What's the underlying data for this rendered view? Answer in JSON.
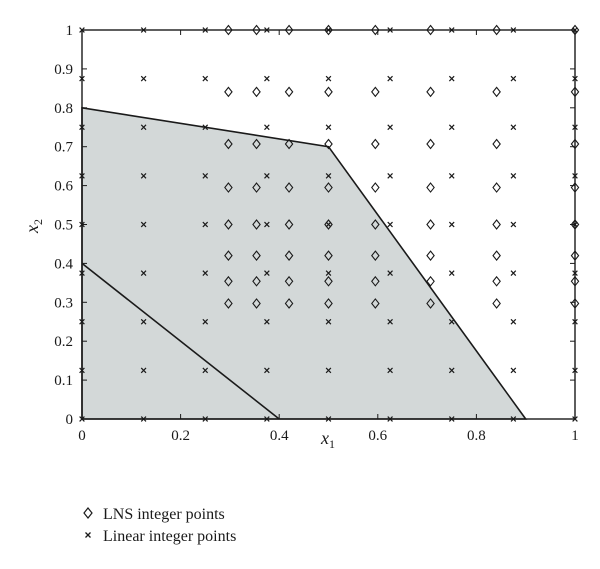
{
  "chart_data": {
    "type": "scatter",
    "title": "",
    "xlabel": "x",
    "xlabel_sub": "1",
    "ylabel": "x",
    "ylabel_sub": "2",
    "xlim": [
      0,
      1
    ],
    "ylim": [
      0,
      1
    ],
    "x_ticks": [
      0,
      0.2,
      0.4,
      0.6,
      0.8,
      1
    ],
    "x_tick_labels": [
      "0",
      "0.2",
      "0.4",
      "0.6",
      "0.8",
      "1"
    ],
    "y_ticks": [
      0,
      0.1,
      0.2,
      0.3,
      0.4,
      0.5,
      0.6,
      0.7,
      0.8,
      0.9,
      1
    ],
    "y_tick_labels": [
      "0",
      "0.1",
      "0.2",
      "0.3",
      "0.4",
      "0.5",
      "0.6",
      "0.7",
      "0.8",
      "0.9",
      "1"
    ],
    "grid": false,
    "legend_position": "below",
    "colors": {
      "region_fill": "#d3d8d8",
      "line": "#1a1a1a",
      "marker": "#1a1a1a"
    },
    "feasible_region": [
      [
        0,
        0
      ],
      [
        0,
        0.8
      ],
      [
        0.5,
        0.7
      ],
      [
        0.9,
        0
      ],
      [
        0,
        0
      ]
    ],
    "inner_line": [
      [
        0,
        0.4
      ],
      [
        0.4,
        0
      ]
    ],
    "series": [
      {
        "name": "LNS integer points",
        "marker": "diamond",
        "grid_values": [
          0,
          0.297,
          0.354,
          0.42,
          0.5,
          0.595,
          0.707,
          0.841,
          1
        ],
        "points": [
          [
            0.297,
            0.297
          ],
          [
            0.297,
            0.354
          ],
          [
            0.297,
            0.42
          ],
          [
            0.297,
            0.5
          ],
          [
            0.297,
            0.595
          ],
          [
            0.297,
            0.707
          ],
          [
            0.297,
            0.841
          ],
          [
            0.297,
            1
          ],
          [
            0.354,
            0.297
          ],
          [
            0.354,
            0.354
          ],
          [
            0.354,
            0.42
          ],
          [
            0.354,
            0.5
          ],
          [
            0.354,
            0.595
          ],
          [
            0.354,
            0.707
          ],
          [
            0.354,
            0.841
          ],
          [
            0.354,
            1
          ],
          [
            0.42,
            0.297
          ],
          [
            0.42,
            0.354
          ],
          [
            0.42,
            0.42
          ],
          [
            0.42,
            0.5
          ],
          [
            0.42,
            0.595
          ],
          [
            0.42,
            0.707
          ],
          [
            0.42,
            0.841
          ],
          [
            0.42,
            1
          ],
          [
            0.5,
            0.297
          ],
          [
            0.5,
            0.354
          ],
          [
            0.5,
            0.42
          ],
          [
            0.5,
            0.5
          ],
          [
            0.5,
            0.595
          ],
          [
            0.5,
            0.707
          ],
          [
            0.5,
            0.841
          ],
          [
            0.5,
            1
          ],
          [
            0.595,
            0.297
          ],
          [
            0.595,
            0.354
          ],
          [
            0.595,
            0.42
          ],
          [
            0.595,
            0.5
          ],
          [
            0.595,
            0.595
          ],
          [
            0.595,
            0.707
          ],
          [
            0.595,
            0.841
          ],
          [
            0.595,
            1
          ],
          [
            0.707,
            0.297
          ],
          [
            0.707,
            0.354
          ],
          [
            0.707,
            0.42
          ],
          [
            0.707,
            0.5
          ],
          [
            0.707,
            0.595
          ],
          [
            0.707,
            0.707
          ],
          [
            0.707,
            0.841
          ],
          [
            0.707,
            1
          ],
          [
            0.841,
            0.297
          ],
          [
            0.841,
            0.354
          ],
          [
            0.841,
            0.42
          ],
          [
            0.841,
            0.5
          ],
          [
            0.841,
            0.595
          ],
          [
            0.841,
            0.707
          ],
          [
            0.841,
            0.841
          ],
          [
            0.841,
            1
          ],
          [
            1,
            0.297
          ],
          [
            1,
            0.354
          ],
          [
            1,
            0.42
          ],
          [
            1,
            0.5
          ],
          [
            1,
            0.595
          ],
          [
            1,
            0.707
          ],
          [
            1,
            0.841
          ],
          [
            1,
            1
          ]
        ]
      },
      {
        "name": "Linear integer points",
        "marker": "x",
        "grid_values": [
          0,
          0.125,
          0.25,
          0.375,
          0.5,
          0.625,
          0.75,
          0.875,
          1
        ],
        "points": [
          [
            0,
            0
          ],
          [
            0,
            0.125
          ],
          [
            0,
            0.25
          ],
          [
            0,
            0.375
          ],
          [
            0,
            0.5
          ],
          [
            0,
            0.625
          ],
          [
            0,
            0.75
          ],
          [
            0,
            0.875
          ],
          [
            0,
            1
          ],
          [
            0.125,
            0
          ],
          [
            0.125,
            0.125
          ],
          [
            0.125,
            0.25
          ],
          [
            0.125,
            0.375
          ],
          [
            0.125,
            0.5
          ],
          [
            0.125,
            0.625
          ],
          [
            0.125,
            0.75
          ],
          [
            0.125,
            0.875
          ],
          [
            0.125,
            1
          ],
          [
            0.25,
            0
          ],
          [
            0.25,
            0.125
          ],
          [
            0.25,
            0.25
          ],
          [
            0.25,
            0.375
          ],
          [
            0.25,
            0.5
          ],
          [
            0.25,
            0.625
          ],
          [
            0.25,
            0.75
          ],
          [
            0.25,
            0.875
          ],
          [
            0.25,
            1
          ],
          [
            0.375,
            0
          ],
          [
            0.375,
            0.125
          ],
          [
            0.375,
            0.25
          ],
          [
            0.375,
            0.375
          ],
          [
            0.375,
            0.5
          ],
          [
            0.375,
            0.625
          ],
          [
            0.375,
            0.75
          ],
          [
            0.375,
            0.875
          ],
          [
            0.375,
            1
          ],
          [
            0.5,
            0
          ],
          [
            0.5,
            0.125
          ],
          [
            0.5,
            0.25
          ],
          [
            0.5,
            0.375
          ],
          [
            0.5,
            0.5
          ],
          [
            0.5,
            0.625
          ],
          [
            0.5,
            0.75
          ],
          [
            0.5,
            0.875
          ],
          [
            0.5,
            1
          ],
          [
            0.625,
            0
          ],
          [
            0.625,
            0.125
          ],
          [
            0.625,
            0.25
          ],
          [
            0.625,
            0.375
          ],
          [
            0.625,
            0.5
          ],
          [
            0.625,
            0.625
          ],
          [
            0.625,
            0.75
          ],
          [
            0.625,
            0.875
          ],
          [
            0.625,
            1
          ],
          [
            0.75,
            0
          ],
          [
            0.75,
            0.125
          ],
          [
            0.75,
            0.25
          ],
          [
            0.75,
            0.375
          ],
          [
            0.75,
            0.5
          ],
          [
            0.75,
            0.625
          ],
          [
            0.75,
            0.75
          ],
          [
            0.75,
            0.875
          ],
          [
            0.75,
            1
          ],
          [
            0.875,
            0
          ],
          [
            0.875,
            0.125
          ],
          [
            0.875,
            0.25
          ],
          [
            0.875,
            0.375
          ],
          [
            0.875,
            0.5
          ],
          [
            0.875,
            0.625
          ],
          [
            0.875,
            0.75
          ],
          [
            0.875,
            0.875
          ],
          [
            0.875,
            1
          ],
          [
            1,
            0
          ],
          [
            1,
            0.125
          ],
          [
            1,
            0.25
          ],
          [
            1,
            0.375
          ],
          [
            1,
            0.5
          ],
          [
            1,
            0.625
          ],
          [
            1,
            0.75
          ],
          [
            1,
            0.875
          ],
          [
            1,
            1
          ]
        ]
      }
    ]
  }
}
